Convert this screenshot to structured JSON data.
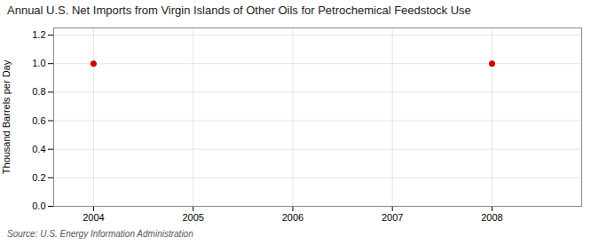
{
  "chart_data": {
    "type": "scatter",
    "title": "Annual U.S. Net Imports from Virgin Islands of Other Oils for Petrochemical Feedstock Use",
    "ylabel": "Thousand Barrels per Day",
    "source": "Source: U.S. Energy Information Administration",
    "x": [
      2004,
      2008
    ],
    "values": [
      1.0,
      1.0
    ],
    "color": "#cc0000",
    "marker": "circle",
    "xlim": [
      2003.6,
      2008.9
    ],
    "xticks": [
      2004,
      2005,
      2006,
      2007,
      2008
    ],
    "ylim": [
      0.0,
      1.25
    ],
    "yticks": [
      {
        "value": 0.0,
        "label": "0.0"
      },
      0.2,
      0.4,
      0.6,
      0.8,
      {
        "value": 1.0,
        "label": "1.0"
      },
      1.2
    ],
    "grid": true
  }
}
